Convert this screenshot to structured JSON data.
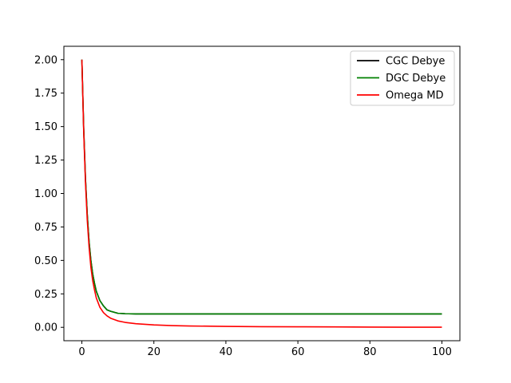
{
  "chart_data": {
    "type": "line",
    "title": "",
    "xlabel": "",
    "ylabel": "",
    "xlim": [
      -5,
      105
    ],
    "ylim": [
      -0.1,
      2.1
    ],
    "xticks": [
      0,
      20,
      40,
      60,
      80,
      100
    ],
    "xtick_labels": [
      "0",
      "20",
      "40",
      "60",
      "80",
      "100"
    ],
    "yticks": [
      0.0,
      0.25,
      0.5,
      0.75,
      1.0,
      1.25,
      1.5,
      1.75,
      2.0
    ],
    "ytick_labels": [
      "0.00",
      "0.25",
      "0.50",
      "0.75",
      "1.00",
      "1.25",
      "1.50",
      "1.75",
      "2.00"
    ],
    "grid": false,
    "legend_position": "top-right",
    "x": [
      0,
      0.5,
      1,
      1.5,
      2,
      2.5,
      3,
      3.5,
      4,
      5,
      6,
      7,
      8,
      10,
      12,
      15,
      20,
      25,
      30,
      40,
      50,
      60,
      70,
      80,
      90,
      100
    ],
    "series": [
      {
        "name": "CGC Debye",
        "color": "#000000",
        "values": [
          2.0,
          1.49,
          1.11,
          0.84,
          0.64,
          0.5,
          0.4,
          0.33,
          0.27,
          0.2,
          0.16,
          0.13,
          0.12,
          0.105,
          0.102,
          0.1,
          0.1,
          0.1,
          0.1,
          0.1,
          0.1,
          0.1,
          0.1,
          0.1,
          0.1,
          0.1
        ]
      },
      {
        "name": "DGC Debye",
        "color": "#008000",
        "values": [
          2.0,
          1.49,
          1.11,
          0.84,
          0.64,
          0.5,
          0.4,
          0.33,
          0.27,
          0.2,
          0.16,
          0.13,
          0.12,
          0.105,
          0.102,
          0.1,
          0.1,
          0.1,
          0.1,
          0.1,
          0.1,
          0.1,
          0.1,
          0.1,
          0.1,
          0.1
        ]
      },
      {
        "name": "Omega MD",
        "color": "#ff0000",
        "values": [
          2.0,
          1.47,
          1.08,
          0.8,
          0.6,
          0.45,
          0.35,
          0.28,
          0.22,
          0.15,
          0.11,
          0.085,
          0.068,
          0.048,
          0.037,
          0.027,
          0.018,
          0.013,
          0.01,
          0.007,
          0.005,
          0.004,
          0.003,
          0.002,
          0.001,
          0.001
        ]
      }
    ]
  }
}
